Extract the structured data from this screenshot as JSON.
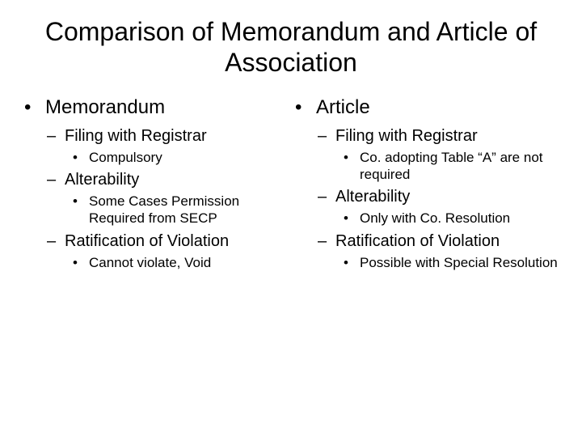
{
  "title": "Comparison of Memorandum and Article of Association",
  "left": {
    "heading": "Memorandum",
    "s1": {
      "heading": "Filing with Registrar",
      "p1": "Compulsory"
    },
    "s2": {
      "heading": "Alterability",
      "p1": "Some Cases Permission Required from SECP"
    },
    "s3": {
      "heading": "Ratification of Violation",
      "p1": "Cannot violate, Void"
    }
  },
  "right": {
    "heading": "Article",
    "s1": {
      "heading": "Filing with Registrar",
      "p1": "Co. adopting Table “A” are not required"
    },
    "s2": {
      "heading": "Alterability",
      "p1": "Only with Co. Resolution"
    },
    "s3": {
      "heading": "Ratification of Violation",
      "p1": "Possible with Special Resolution"
    }
  }
}
